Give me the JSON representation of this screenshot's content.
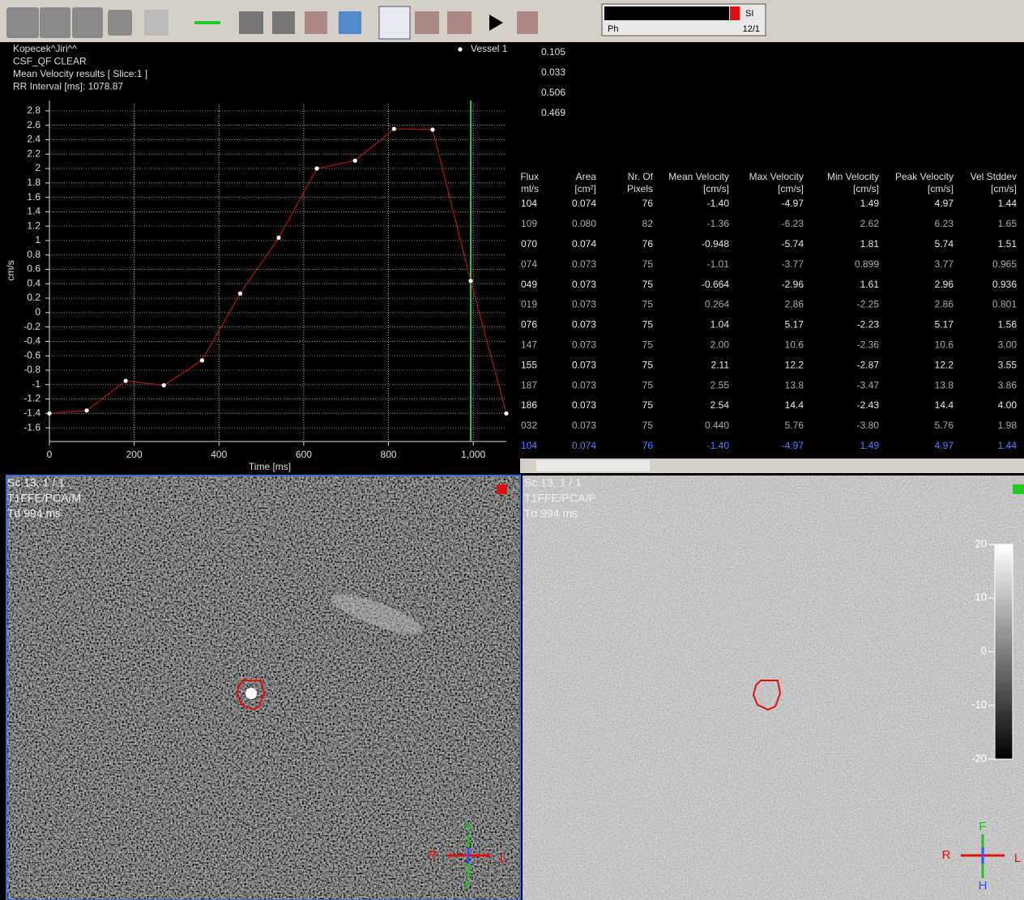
{
  "toolbar": {
    "status_tag": "SI",
    "status_left": "Ph",
    "status_right": "12/1"
  },
  "chart_data": {
    "type": "line",
    "header_lines": [
      "Kopecek^Jiri^^",
      "CSF_QF CLEAR",
      "Mean Velocity results [ Slice:1 ]",
      "RR Interval [ms]: 1078.87"
    ],
    "x": [
      0,
      88,
      180,
      270,
      360,
      450,
      541,
      631,
      721,
      813,
      904,
      994,
      1078
    ],
    "series": [
      {
        "name": "Vessel 1",
        "color": "#a01818",
        "values": [
          -1.4,
          -1.36,
          -0.948,
          -1.01,
          -0.664,
          0.264,
          1.04,
          2.0,
          2.11,
          2.55,
          2.54,
          0.44,
          -1.4
        ]
      }
    ],
    "xlabel": "Time [ms]",
    "ylabel": "cm/s",
    "xlim": [
      0,
      1078
    ],
    "xticks": [
      0,
      200,
      400,
      600,
      800,
      {
        "value": 1000,
        "label": "1,000"
      }
    ],
    "ylim": [
      -1.79,
      2.9
    ],
    "yticks": [
      2.8,
      2.6,
      2.4,
      2.2,
      2,
      1.8,
      1.6,
      1.4,
      1.2,
      1,
      0.8,
      0.6,
      0.4,
      0.2,
      0,
      -0.2,
      -0.4,
      -0.6,
      -0.8,
      -1,
      -1.2,
      -1.4,
      -1.6
    ],
    "grid": true,
    "cursor": 994,
    "cursor_color": "#40c040"
  },
  "summary_values": [
    "0.105",
    "0.033",
    "0.506",
    "0.469"
  ],
  "table": {
    "columns": [
      [
        "Flux",
        "ml/s"
      ],
      [
        "Area",
        "[cm²]"
      ],
      [
        "Nr. Of",
        "Pixels"
      ],
      [
        "Mean Velocity",
        "[cm/s]"
      ],
      [
        "Max Velocity",
        "[cm/s]"
      ],
      [
        "Min Velocity",
        "[cm/s]"
      ],
      [
        "Peak Velocity",
        "[cm/s]"
      ],
      [
        "Vel Stddev",
        "[cm/s]"
      ]
    ],
    "rows": [
      [
        "104",
        "0.074",
        "76",
        "-1.40",
        "-4.97",
        "1.49",
        "4.97",
        "1.44"
      ],
      [
        "109",
        "0.080",
        "82",
        "-1.36",
        "-6.23",
        "2.62",
        "6.23",
        "1.65"
      ],
      [
        "070",
        "0.074",
        "76",
        "-0.948",
        "-5.74",
        "1.81",
        "5.74",
        "1.51"
      ],
      [
        "074",
        "0.073",
        "75",
        "-1.01",
        "-3.77",
        "0.899",
        "3.77",
        "0.965"
      ],
      [
        "049",
        "0.073",
        "75",
        "-0.664",
        "-2.96",
        "1.61",
        "2.96",
        "0.936"
      ],
      [
        "019",
        "0.073",
        "75",
        "0.264",
        "2.86",
        "-2.25",
        "2.86",
        "0.801"
      ],
      [
        "076",
        "0.073",
        "75",
        "1.04",
        "5.17",
        "-2.23",
        "5.17",
        "1.56"
      ],
      [
        "147",
        "0.073",
        "75",
        "2.00",
        "10.6",
        "-2.36",
        "10.6",
        "3.00"
      ],
      [
        "155",
        "0.073",
        "75",
        "2.11",
        "12.2",
        "-2.87",
        "12.2",
        "3.55"
      ],
      [
        "187",
        "0.073",
        "75",
        "2.55",
        "13.8",
        "-3.47",
        "13.8",
        "3.86"
      ],
      [
        "186",
        "0.073",
        "75",
        "2.54",
        "14.4",
        "-2.43",
        "14.4",
        "4.00"
      ],
      [
        "032",
        "0.073",
        "75",
        "0.440",
        "5.76",
        "-3.80",
        "5.76",
        "1.98"
      ],
      [
        "104",
        "0.074",
        "76",
        "-1.40",
        "-4.97",
        "1.49",
        "4.97",
        "1.44"
      ]
    ]
  },
  "image_panes": [
    {
      "lines": [
        "Sc 13, 1 / 1",
        "T1FFE/PCA/M",
        "Td 994 ms"
      ],
      "orientation": [
        "A",
        "P",
        "R",
        "L"
      ]
    },
    {
      "lines": [
        "Sc 13, 1 / 1",
        "T1FFE/PCA/P",
        "Td 994 ms"
      ],
      "orientation": [
        "F",
        "H",
        "R",
        "L"
      ]
    }
  ],
  "colorbar": {
    "lim": [
      -20,
      20
    ],
    "ticks": [
      20,
      10,
      0,
      -10,
      -20
    ]
  }
}
